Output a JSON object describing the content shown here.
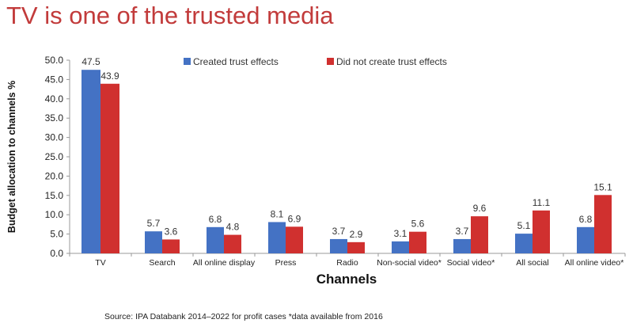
{
  "title": "TV is one of the trusted media",
  "source": "Source: IPA Databank 2014–2022 for profit cases *data available from 2016",
  "chart_data": {
    "type": "bar",
    "xlabel": "Channels",
    "ylabel": "Budget allocation to channels %",
    "ylim": [
      0,
      50
    ],
    "yticks": [
      "0.0",
      "5.0",
      "10.0",
      "15.0",
      "20.0",
      "25.0",
      "30.0",
      "35.0",
      "40.0",
      "45.0",
      "50.0"
    ],
    "categories": [
      "TV",
      "Search",
      "All online display",
      "Press",
      "Radio",
      "Non-social video*",
      "Social video*",
      "All social",
      "All online video*"
    ],
    "series": [
      {
        "name": "Created trust effects",
        "color": "#4472c4",
        "values": [
          47.5,
          5.7,
          6.8,
          8.1,
          3.7,
          3.1,
          3.7,
          5.1,
          6.8
        ]
      },
      {
        "name": "Did not create trust effects",
        "color": "#d0302f",
        "values": [
          43.9,
          3.6,
          4.8,
          6.9,
          2.9,
          5.6,
          9.6,
          11.1,
          15.1
        ]
      }
    ],
    "legend": "top",
    "grid": false
  }
}
